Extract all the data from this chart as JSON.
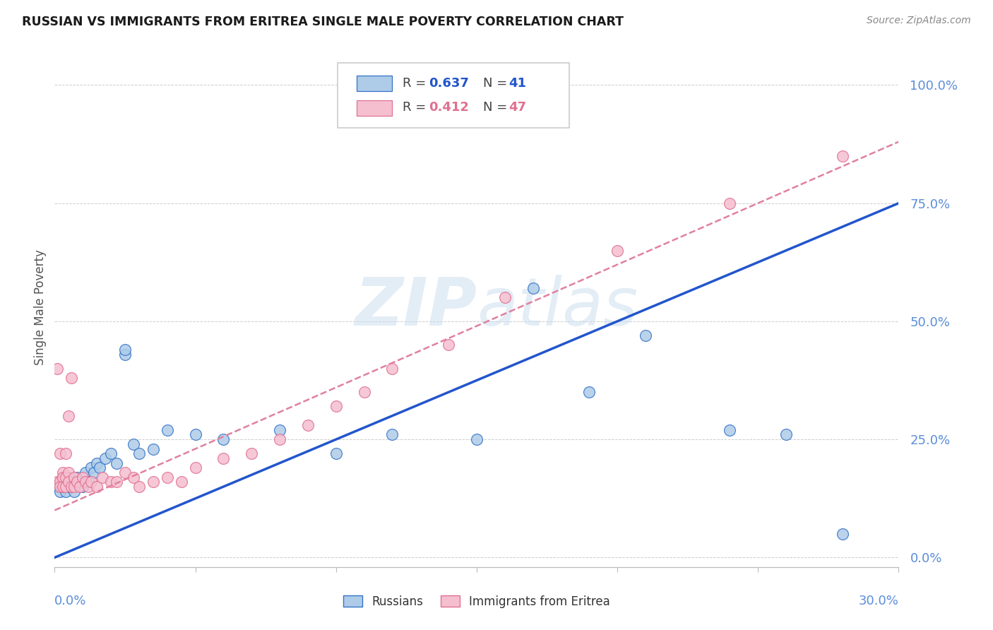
{
  "title": "RUSSIAN VS IMMIGRANTS FROM ERITREA SINGLE MALE POVERTY CORRELATION CHART",
  "source": "Source: ZipAtlas.com",
  "ylabel": "Single Male Poverty",
  "xlim": [
    0.0,
    0.3
  ],
  "ylim": [
    -0.02,
    1.08
  ],
  "yticks": [
    0.0,
    0.25,
    0.5,
    0.75,
    1.0
  ],
  "ytick_labels": [
    "0.0%",
    "25.0%",
    "50.0%",
    "75.0%",
    "100.0%"
  ],
  "xtick_left": "0.0%",
  "xtick_right": "30.0%",
  "russian_R": "0.637",
  "russian_N": "41",
  "eritrea_R": "0.412",
  "eritrea_N": "47",
  "russian_face": "#aecce8",
  "russian_edge": "#3472c8",
  "eritrea_face": "#f5bfd0",
  "eritrea_edge": "#e07090",
  "russian_line_color": "#2255cc",
  "eritrea_line_color": "#e080a0",
  "watermark_color": "#cddff0",
  "title_color": "#1a1a1a",
  "source_color": "#888888",
  "axis_color": "#5b8dd9",
  "russian_x": [
    0.001,
    0.002,
    0.002,
    0.003,
    0.003,
    0.004,
    0.004,
    0.005,
    0.005,
    0.006,
    0.007,
    0.008,
    0.009,
    0.01,
    0.011,
    0.012,
    0.013,
    0.014,
    0.015,
    0.016,
    0.018,
    0.02,
    0.022,
    0.025,
    0.025,
    0.028,
    0.03,
    0.035,
    0.04,
    0.05,
    0.06,
    0.08,
    0.1,
    0.12,
    0.15,
    0.17,
    0.19,
    0.21,
    0.24,
    0.26,
    0.28
  ],
  "russian_y": [
    0.15,
    0.16,
    0.14,
    0.15,
    0.17,
    0.14,
    0.16,
    0.15,
    0.17,
    0.16,
    0.14,
    0.17,
    0.16,
    0.15,
    0.18,
    0.16,
    0.19,
    0.18,
    0.2,
    0.19,
    0.21,
    0.22,
    0.2,
    0.43,
    0.44,
    0.24,
    0.22,
    0.23,
    0.27,
    0.26,
    0.25,
    0.27,
    0.22,
    0.26,
    0.25,
    0.57,
    0.35,
    0.47,
    0.27,
    0.26,
    0.05
  ],
  "eritrea_x": [
    0.001,
    0.001,
    0.002,
    0.002,
    0.002,
    0.003,
    0.003,
    0.003,
    0.004,
    0.004,
    0.004,
    0.005,
    0.005,
    0.005,
    0.006,
    0.006,
    0.007,
    0.007,
    0.008,
    0.009,
    0.01,
    0.011,
    0.012,
    0.013,
    0.015,
    0.017,
    0.02,
    0.022,
    0.025,
    0.028,
    0.03,
    0.035,
    0.04,
    0.045,
    0.05,
    0.06,
    0.07,
    0.08,
    0.09,
    0.1,
    0.11,
    0.12,
    0.14,
    0.16,
    0.2,
    0.24,
    0.28
  ],
  "eritrea_y": [
    0.4,
    0.16,
    0.22,
    0.16,
    0.15,
    0.18,
    0.17,
    0.15,
    0.22,
    0.17,
    0.15,
    0.18,
    0.16,
    0.3,
    0.15,
    0.38,
    0.17,
    0.15,
    0.16,
    0.15,
    0.17,
    0.16,
    0.15,
    0.16,
    0.15,
    0.17,
    0.16,
    0.16,
    0.18,
    0.17,
    0.15,
    0.16,
    0.17,
    0.16,
    0.19,
    0.21,
    0.22,
    0.25,
    0.28,
    0.32,
    0.35,
    0.4,
    0.45,
    0.55,
    0.65,
    0.75,
    0.85
  ],
  "blue_line_x": [
    0.0,
    0.3
  ],
  "blue_line_y": [
    0.0,
    0.75
  ],
  "pink_line_x": [
    0.0,
    0.3
  ],
  "pink_line_y": [
    0.1,
    0.88
  ]
}
